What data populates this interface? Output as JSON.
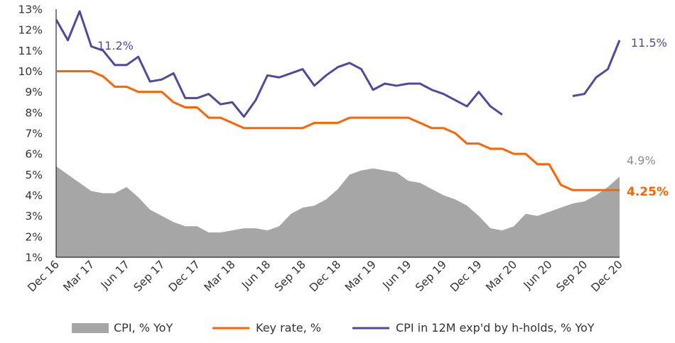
{
  "chart_data": {
    "type": "line",
    "x": [
      "Dec 16",
      "Jan 17",
      "Feb 17",
      "Mar 17",
      "Apr 17",
      "May 17",
      "Jun 17",
      "Jul 17",
      "Aug 17",
      "Sep 17",
      "Oct 17",
      "Nov 17",
      "Dec 17",
      "Jan 18",
      "Feb 18",
      "Mar 18",
      "Apr 18",
      "May 18",
      "Jun 18",
      "Jul 18",
      "Aug 18",
      "Sep 18",
      "Oct 18",
      "Nov 18",
      "Dec 18",
      "Jan 19",
      "Feb 19",
      "Mar 19",
      "Apr 19",
      "May 19",
      "Jun 19",
      "Jul 19",
      "Aug 19",
      "Sep 19",
      "Oct 19",
      "Nov 19",
      "Dec 19",
      "Jan 20",
      "Feb 20",
      "Mar 20",
      "Apr 20",
      "May 20",
      "Jun 20",
      "Jul 20",
      "Aug 20",
      "Sep 20",
      "Oct 20",
      "Nov 20",
      "Dec 20"
    ],
    "x_tick_labels": [
      "Dec 16",
      "Mar 17",
      "Jun 17",
      "Sep 17",
      "Dec 17",
      "Mar 18",
      "Jun 18",
      "Sep 18",
      "Dec 18",
      "Mar 19",
      "Jun 19",
      "Sep 19",
      "Dec 19",
      "Mar 20",
      "Jun 20",
      "Sep 20",
      "Dec 20"
    ],
    "y_tick_labels": [
      "1%",
      "2%",
      "3%",
      "4%",
      "5%",
      "6%",
      "7%",
      "8%",
      "9%",
      "10%",
      "11%",
      "12%",
      "13%"
    ],
    "ylim": [
      1,
      13
    ],
    "grid": false,
    "legend_position": "bottom",
    "series": [
      {
        "name": "CPI, % YoY",
        "kind": "area",
        "color": "#a6a6a6",
        "values": [
          5.4,
          5.0,
          4.6,
          4.2,
          4.1,
          4.1,
          4.4,
          3.9,
          3.3,
          3.0,
          2.7,
          2.5,
          2.5,
          2.2,
          2.2,
          2.3,
          2.4,
          2.4,
          2.3,
          2.5,
          3.1,
          3.4,
          3.5,
          3.8,
          4.3,
          5.0,
          5.2,
          5.3,
          5.2,
          5.1,
          4.7,
          4.6,
          4.3,
          4.0,
          3.8,
          3.5,
          3.0,
          2.4,
          2.3,
          2.5,
          3.1,
          3.0,
          3.2,
          3.4,
          3.6,
          3.7,
          4.0,
          4.4,
          4.9
        ]
      },
      {
        "name": "Key rate, %",
        "kind": "line",
        "color": "#ff6200",
        "values": [
          10.0,
          10.0,
          10.0,
          10.0,
          9.75,
          9.25,
          9.25,
          9.0,
          9.0,
          9.0,
          8.5,
          8.25,
          8.25,
          7.75,
          7.75,
          7.5,
          7.25,
          7.25,
          7.25,
          7.25,
          7.25,
          7.25,
          7.5,
          7.5,
          7.5,
          7.75,
          7.75,
          7.75,
          7.75,
          7.75,
          7.75,
          7.5,
          7.25,
          7.25,
          7.0,
          6.5,
          6.5,
          6.25,
          6.25,
          6.0,
          6.0,
          5.5,
          5.5,
          4.5,
          4.25,
          4.25,
          4.25,
          4.25,
          4.25
        ]
      },
      {
        "name": "CPI in 12M exp'd by h-holds, % YoY",
        "kind": "line",
        "color": "#52489c",
        "values": [
          12.5,
          11.5,
          12.9,
          11.2,
          11.0,
          10.3,
          10.3,
          10.7,
          9.5,
          9.6,
          9.9,
          8.7,
          8.7,
          8.9,
          8.4,
          8.5,
          7.8,
          8.6,
          9.8,
          9.7,
          9.9,
          10.1,
          9.3,
          9.8,
          10.2,
          10.4,
          10.1,
          9.1,
          9.4,
          9.3,
          9.4,
          9.4,
          9.1,
          8.9,
          8.6,
          8.3,
          9.0,
          8.3,
          7.9,
          null,
          null,
          null,
          null,
          null,
          8.8,
          8.9,
          9.7,
          10.1,
          11.5
        ]
      }
    ],
    "annotations": [
      {
        "text": "11.2%",
        "series": 2,
        "index": 3
      },
      {
        "text": "11.5%",
        "series": 2,
        "index": 48
      },
      {
        "text": "4.9%",
        "series": 0,
        "index": 48
      },
      {
        "text": "4.25%",
        "series": 1,
        "index": 48
      }
    ]
  }
}
